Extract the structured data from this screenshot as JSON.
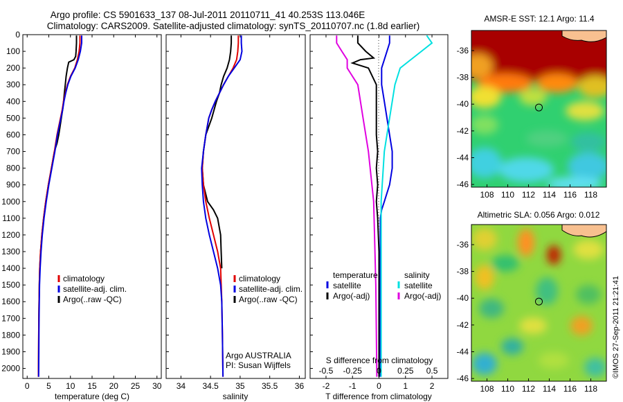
{
  "title_line1": "Argo profile: CS 5901633_137 08-Jul-2011 20110711_41 40.253S 113.046E",
  "title_line2": "Climatology: CARS2009. Satellite-adjusted climatology: synTS_20110707.nc (1.8d earlier)",
  "colors": {
    "climatology": "#e00000",
    "satellite": "#0000e0",
    "argo": "#000000",
    "sal_satellite": "#00e0e0",
    "sal_argo": "#e000e0"
  },
  "chart_data": [
    {
      "type": "line",
      "name": "temperature",
      "xlabel": "temperature (deg C)",
      "ylabel": "",
      "xlim": [
        -1,
        31
      ],
      "ylim": [
        2060,
        0
      ],
      "xticks": [
        0,
        5,
        10,
        15,
        20,
        25,
        30
      ],
      "yticks": [
        0,
        100,
        200,
        300,
        400,
        500,
        600,
        700,
        800,
        900,
        1000,
        1100,
        1200,
        1300,
        1400,
        1500,
        1600,
        1700,
        1800,
        1900,
        2000
      ],
      "legend": [
        "climatology",
        "satellite-adj. clim.",
        "Argo(..raw -QC)"
      ],
      "legend_position": "lower-center",
      "series": [
        {
          "name": "Argo(..raw -QC)",
          "color": "#000000",
          "x": [
            11.4,
            11.4,
            11.3,
            11.2,
            10.8,
            9.6,
            9.3,
            9.0,
            8.8,
            8.6,
            8.4,
            8.2,
            7.9,
            7.6,
            7.3,
            6.9,
            6.3,
            5.6,
            4.9,
            4.3,
            3.8,
            3.4,
            3.1,
            2.9,
            2.8,
            2.7,
            2.65,
            2.6
          ],
          "y": [
            5,
            50,
            100,
            130,
            150,
            165,
            200,
            250,
            300,
            350,
            400,
            450,
            500,
            550,
            600,
            650,
            700,
            800,
            900,
            1000,
            1100,
            1200,
            1300,
            1400,
            1500,
            1700,
            1900,
            2050
          ]
        },
        {
          "name": "climatology",
          "color": "#e00000",
          "x": [
            12.2,
            12.2,
            12.0,
            11.6,
            11.0,
            10.0,
            9.3,
            8.8,
            8.4,
            8.1,
            7.7,
            7.3,
            6.9,
            6.3,
            5.6,
            4.9,
            4.3,
            3.8,
            3.4,
            3.1,
            2.9,
            2.8,
            2.7,
            2.65,
            2.6
          ],
          "y": [
            5,
            50,
            100,
            150,
            200,
            250,
            300,
            350,
            400,
            450,
            500,
            550,
            600,
            700,
            800,
            900,
            1000,
            1100,
            1200,
            1300,
            1400,
            1500,
            1700,
            1900,
            2050
          ]
        },
        {
          "name": "satellite-adj. clim.",
          "color": "#0000e0",
          "x": [
            12.6,
            12.6,
            12.3,
            11.8,
            11.1,
            10.1,
            9.4,
            8.9,
            8.5,
            8.2,
            7.8,
            7.4,
            7.0,
            6.4,
            5.7,
            5.0,
            4.4,
            3.9,
            3.5,
            3.2,
            3.0,
            2.85,
            2.75,
            2.7,
            2.65
          ],
          "y": [
            5,
            50,
            100,
            150,
            200,
            250,
            300,
            350,
            400,
            450,
            500,
            550,
            600,
            700,
            800,
            900,
            1000,
            1100,
            1200,
            1300,
            1400,
            1500,
            1700,
            1900,
            2050
          ]
        }
      ]
    },
    {
      "type": "line",
      "name": "salinity",
      "xlabel": "salinity",
      "ylabel": "",
      "xlim": [
        33.75,
        36.1
      ],
      "ylim": [
        2060,
        0
      ],
      "xticks": [
        34,
        34.5,
        35,
        35.5,
        36
      ],
      "legend": [
        "climatology",
        "satellite-adj. clim.",
        "Argo(..raw -QC)"
      ],
      "legend_position": "lower-center",
      "annotation": [
        "Argo AUSTRALIA",
        "PI: Susan Wijffels"
      ],
      "series": [
        {
          "name": "Argo(..raw -QC)",
          "color": "#000000",
          "x": [
            34.85,
            34.85,
            34.84,
            34.82,
            34.78,
            34.72,
            34.68,
            34.65,
            34.6,
            34.56,
            34.52,
            34.47,
            34.42,
            34.38,
            34.36,
            34.38,
            34.45,
            34.55,
            34.62,
            34.67,
            34.68,
            34.69
          ],
          "y": [
            5,
            50,
            100,
            150,
            200,
            250,
            300,
            350,
            400,
            450,
            500,
            550,
            600,
            700,
            800,
            900,
            1000,
            1050,
            1100,
            1200,
            1300,
            1400
          ]
        },
        {
          "name": "climatology",
          "color": "#e00000",
          "x": [
            34.97,
            34.97,
            34.96,
            34.94,
            34.88,
            34.8,
            34.72,
            34.65,
            34.58,
            34.52,
            34.47,
            34.42,
            34.38,
            34.36,
            34.38,
            34.42,
            34.48,
            34.55,
            34.62,
            34.67,
            34.69,
            34.7,
            34.71
          ],
          "y": [
            5,
            50,
            100,
            150,
            200,
            250,
            300,
            350,
            400,
            450,
            500,
            600,
            700,
            800,
            900,
            1000,
            1100,
            1200,
            1300,
            1400,
            1600,
            1800,
            2050
          ]
        },
        {
          "name": "satellite-adj. clim.",
          "color": "#0000e0",
          "x": [
            35.02,
            35.02,
            35.03,
            35.0,
            34.9,
            34.8,
            34.72,
            34.65,
            34.58,
            34.52,
            34.47,
            34.42,
            34.38,
            34.35,
            34.36,
            34.38,
            34.42,
            34.48,
            34.55,
            34.62,
            34.67,
            34.69,
            34.7,
            34.71
          ],
          "y": [
            5,
            50,
            100,
            150,
            200,
            250,
            300,
            350,
            400,
            450,
            500,
            600,
            700,
            800,
            900,
            1000,
            1100,
            1200,
            1300,
            1400,
            1500,
            1600,
            1800,
            2050
          ]
        }
      ]
    },
    {
      "type": "line",
      "name": "difference",
      "xlabel": "T difference from climatology",
      "ylabel": "",
      "xlim": [
        -2.6,
        2.6
      ],
      "ylim": [
        2060,
        0
      ],
      "xticks": [
        -2,
        -1,
        0,
        1,
        2
      ],
      "top_label": "S difference from climatology",
      "top_ticks": [
        -0.5,
        -0.25,
        0,
        0.25,
        0.5
      ],
      "legend_temperature": [
        "temperature",
        "satellite",
        "Argo(-adj)"
      ],
      "legend_salinity": [
        "salinity",
        "satellite",
        "Argo(-adj)"
      ],
      "series": [
        {
          "name": "temperature satellite",
          "color": "#0000e0",
          "x": [
            0.4,
            0.4,
            0.3,
            0.2,
            0.1,
            0.1,
            0.2,
            0.3,
            0.4,
            0.5,
            0.5,
            0.4,
            0.3,
            0.2,
            0.1,
            0.05,
            0.05,
            0.05,
            0.05
          ],
          "y": [
            5,
            50,
            100,
            150,
            200,
            300,
            400,
            500,
            600,
            700,
            800,
            900,
            950,
            1000,
            1050,
            1100,
            1300,
            1600,
            2050
          ]
        },
        {
          "name": "temperature Argo(-adj)",
          "color": "#000000",
          "x": [
            -0.8,
            -0.8,
            -0.5,
            -0.2,
            -0.7,
            -1.0,
            -0.4,
            -0.1,
            -0.1,
            -0.1,
            -0.1,
            -0.05,
            -0.1,
            -0.05,
            -0.1,
            -0.05,
            0.0,
            0.0
          ],
          "y": [
            5,
            50,
            100,
            140,
            150,
            170,
            200,
            300,
            400,
            500,
            600,
            700,
            800,
            900,
            1000,
            1100,
            1300,
            2050
          ]
        },
        {
          "name": "salinity satellite",
          "color": "#00e0e0",
          "x": [
            0.45,
            0.5,
            0.4,
            0.3,
            0.2,
            0.15,
            0.1,
            0.05,
            0.02,
            0.02,
            0.02
          ],
          "y": [
            5,
            50,
            100,
            150,
            200,
            300,
            500,
            700,
            1000,
            1500,
            2050
          ]
        },
        {
          "name": "salinity Argo(-adj)",
          "color": "#e000e0",
          "x": [
            -0.4,
            -0.4,
            -0.35,
            -0.3,
            -0.3,
            -0.2,
            -0.15,
            -0.1,
            -0.05,
            -0.03,
            -0.02
          ],
          "y": [
            5,
            50,
            100,
            150,
            200,
            300,
            500,
            700,
            1000,
            1500,
            2050
          ]
        }
      ]
    },
    {
      "type": "heatmap",
      "name": "sst-map",
      "title": "AMSR-E SST: 12.1  Argo: 11.4",
      "xticks": [
        108,
        110,
        112,
        114,
        116,
        118
      ],
      "yticks": [
        -36,
        -38,
        -40,
        -42,
        -44,
        -46
      ],
      "xlim": [
        106.5,
        119.5
      ],
      "ylim": [
        -46.2,
        -34.5
      ],
      "marker": {
        "x": 113.0,
        "y": -40.25
      }
    },
    {
      "type": "heatmap",
      "name": "sla-map",
      "title": "Altimetric SLA: 0.056  Argo: 0.012",
      "xticks": [
        108,
        110,
        112,
        114,
        116,
        118
      ],
      "yticks": [
        -36,
        -38,
        -40,
        -42,
        -44,
        -46
      ],
      "xlim": [
        106.5,
        119.5
      ],
      "ylim": [
        -46.2,
        -34.5
      ],
      "marker": {
        "x": 113.0,
        "y": -40.25
      }
    }
  ],
  "credit": "©IMOS 27-Sep-2011 21:21:41"
}
